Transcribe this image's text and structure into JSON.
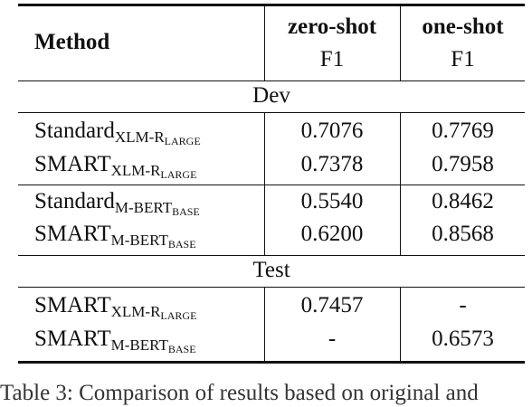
{
  "table": {
    "header": {
      "method": "Method",
      "zero_shot": "zero-shot",
      "one_shot": "one-shot",
      "metric_zero": "F1",
      "metric_one": "F1"
    },
    "sections": {
      "dev": "Dev",
      "test": "Test"
    },
    "rows": [
      {
        "name": "Standard",
        "sub": "XLM-R",
        "subsub": "LARGE",
        "zero": "0.7076",
        "one": "0.7769"
      },
      {
        "name": "SMART",
        "sub": "XLM-R",
        "subsub": "LARGE",
        "zero": "0.7378",
        "one": "0.7958"
      },
      {
        "name": "Standard",
        "sub": "M-BERT",
        "subsub": "BASE",
        "zero": "0.5540",
        "one": "0.8462"
      },
      {
        "name": "SMART",
        "sub": "M-BERT",
        "subsub": "BASE",
        "zero": "0.6200",
        "one": "0.8568"
      },
      {
        "name": "SMART",
        "sub": "XLM-R",
        "subsub": "LARGE",
        "zero": "0.7457",
        "one": "-"
      },
      {
        "name": "SMART",
        "sub": "M-BERT",
        "subsub": "BASE",
        "zero": "-",
        "one": "0.6573"
      }
    ]
  },
  "caption": "Table 3: Comparison of results based on original and"
}
